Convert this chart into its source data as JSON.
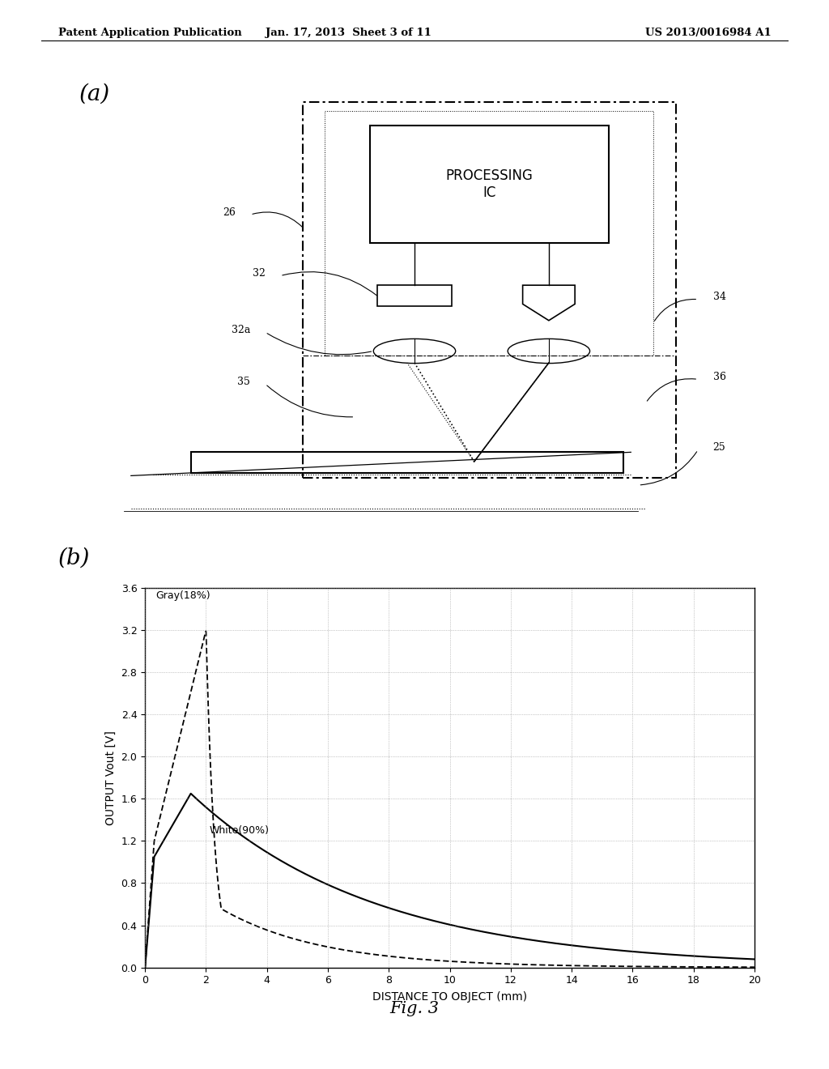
{
  "header_left": "Patent Application Publication",
  "header_mid": "Jan. 17, 2013  Sheet 3 of 11",
  "header_right": "US 2013/0016984 A1",
  "fig_label": "Fig. 3",
  "label_a": "(a)",
  "label_b": "(b)",
  "processing_ic_text": "PROCESSING\nIC",
  "graph_xlabel": "DISTANCE TO OBJECT (mm)",
  "graph_ylabel": "OUTPUT Vout [V]",
  "gray_label": "Gray(18%)",
  "white_label": "White(90%)",
  "ylim": [
    0.0,
    3.6
  ],
  "xlim": [
    0,
    20
  ],
  "yticks": [
    0.0,
    0.4,
    0.8,
    1.2,
    1.6,
    2.0,
    2.4,
    2.8,
    3.2,
    3.6
  ],
  "xticks": [
    0,
    2,
    4,
    6,
    8,
    10,
    12,
    14,
    16,
    18,
    20
  ],
  "background_color": "#ffffff",
  "line_color": "#000000",
  "grid_color": "#999999"
}
